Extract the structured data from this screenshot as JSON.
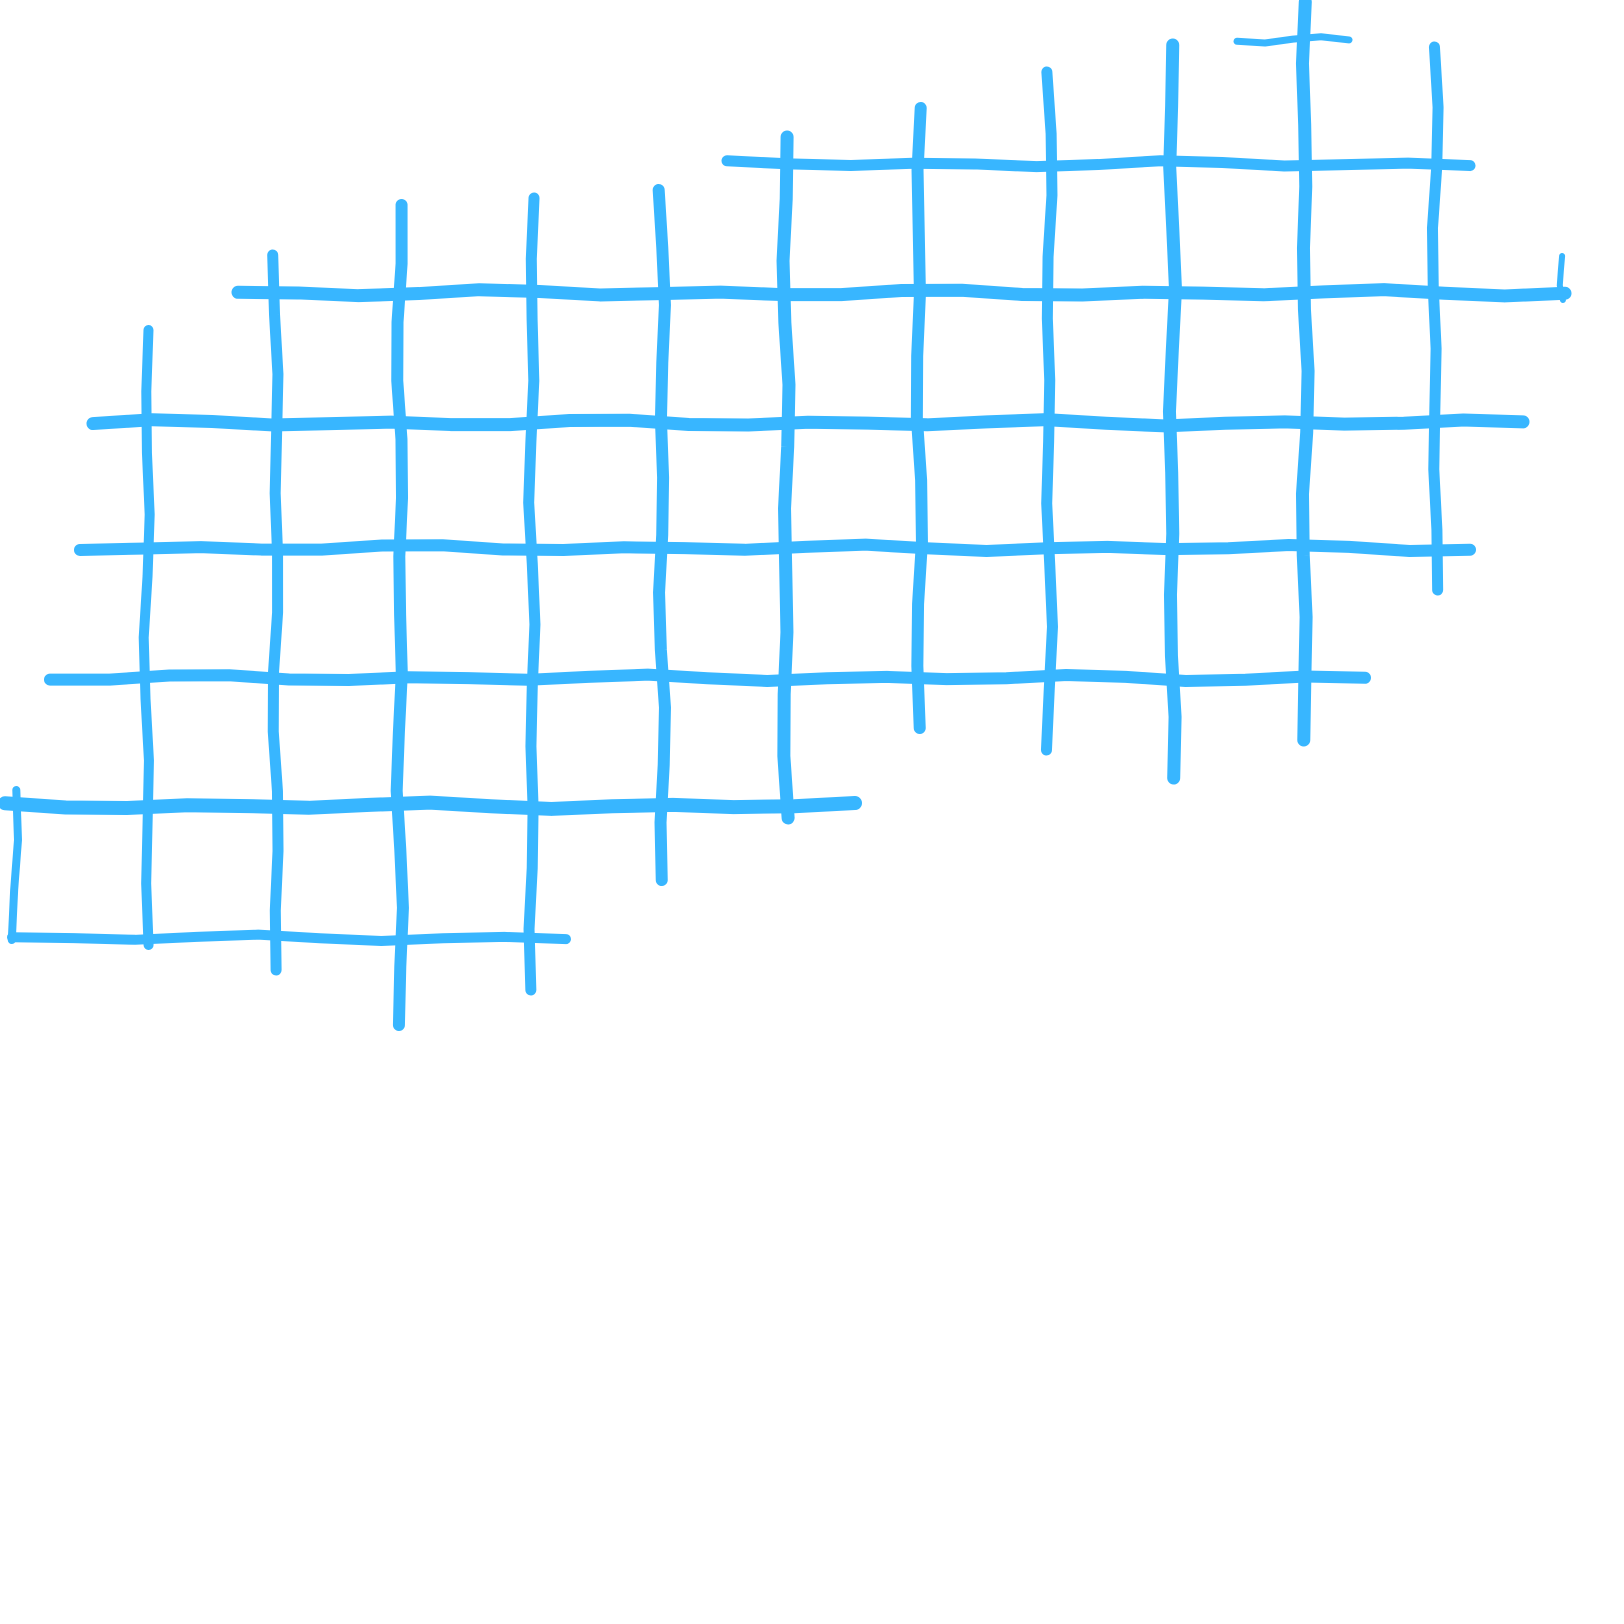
{
  "artwork": {
    "type": "hand-drawn grid pattern",
    "color": "#38b6ff",
    "background": "#ffffff"
  }
}
